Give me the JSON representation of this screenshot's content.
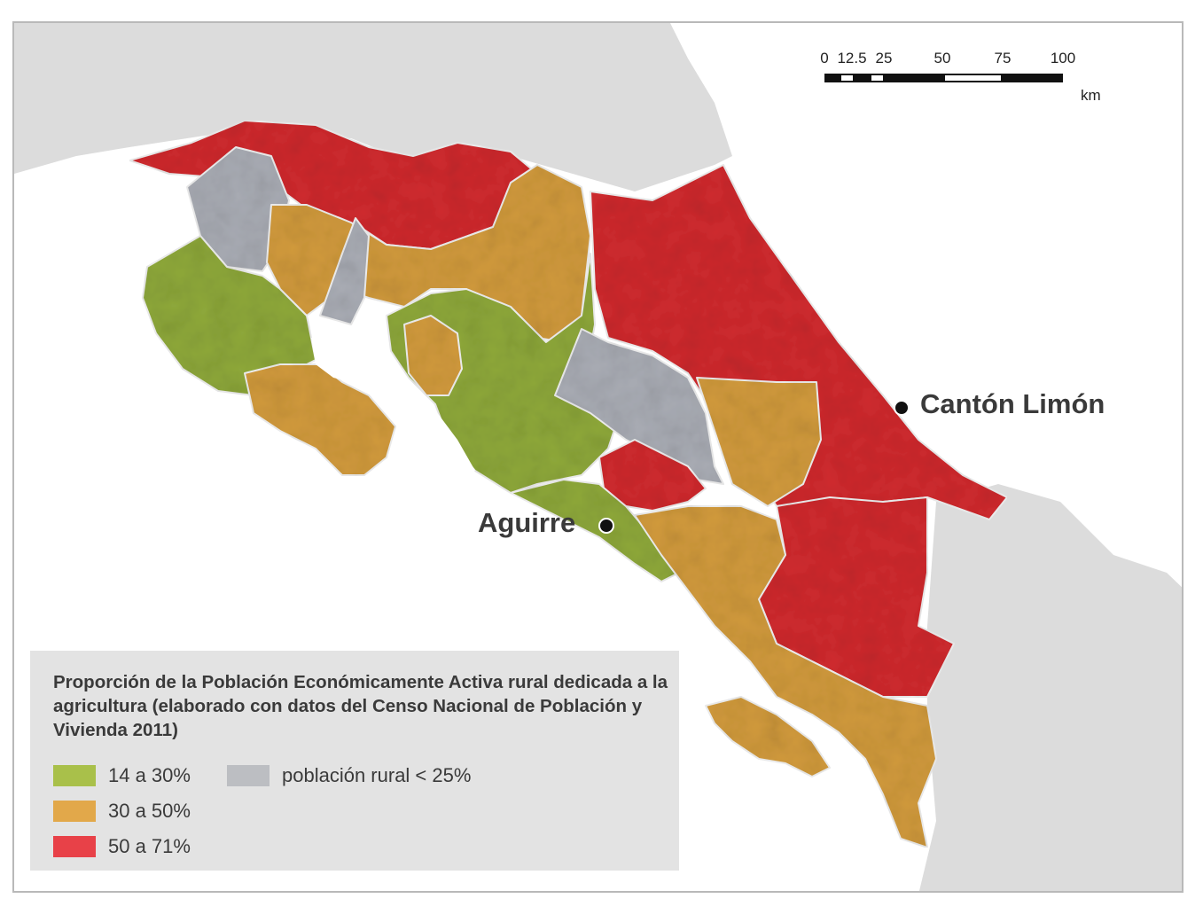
{
  "colors": {
    "sea": "#ffffff",
    "neighbor_land": "#dcdcdc",
    "green": "#8ea83a",
    "orange": "#d19a3c",
    "red": "#cf2a2e",
    "gray": "#a9acb4",
    "border_line": "#ececec",
    "legend_bg": "#e3e3e3"
  },
  "scale_bar": {
    "ticks": [
      "0",
      "12.5",
      "25",
      "50",
      "75",
      "100"
    ],
    "unit": "km"
  },
  "places": {
    "canton_limon": "Cantón Limón",
    "aguirre": "Aguirre"
  },
  "legend": {
    "title": "Proporción de la Población Económicamente Activa rural dedicada a la agricultura (elaborado con datos del Censo Nacional de Población y Vivienda 2011)",
    "items": [
      {
        "label": "14 a 30%",
        "color": "#a9c04a"
      },
      {
        "label": "población rural < 25%",
        "color": "#bcbec2"
      },
      {
        "label": "30 a 50%",
        "color": "#e2a84a"
      },
      {
        "label": "50 a 71%",
        "color": "#e84148"
      }
    ]
  }
}
